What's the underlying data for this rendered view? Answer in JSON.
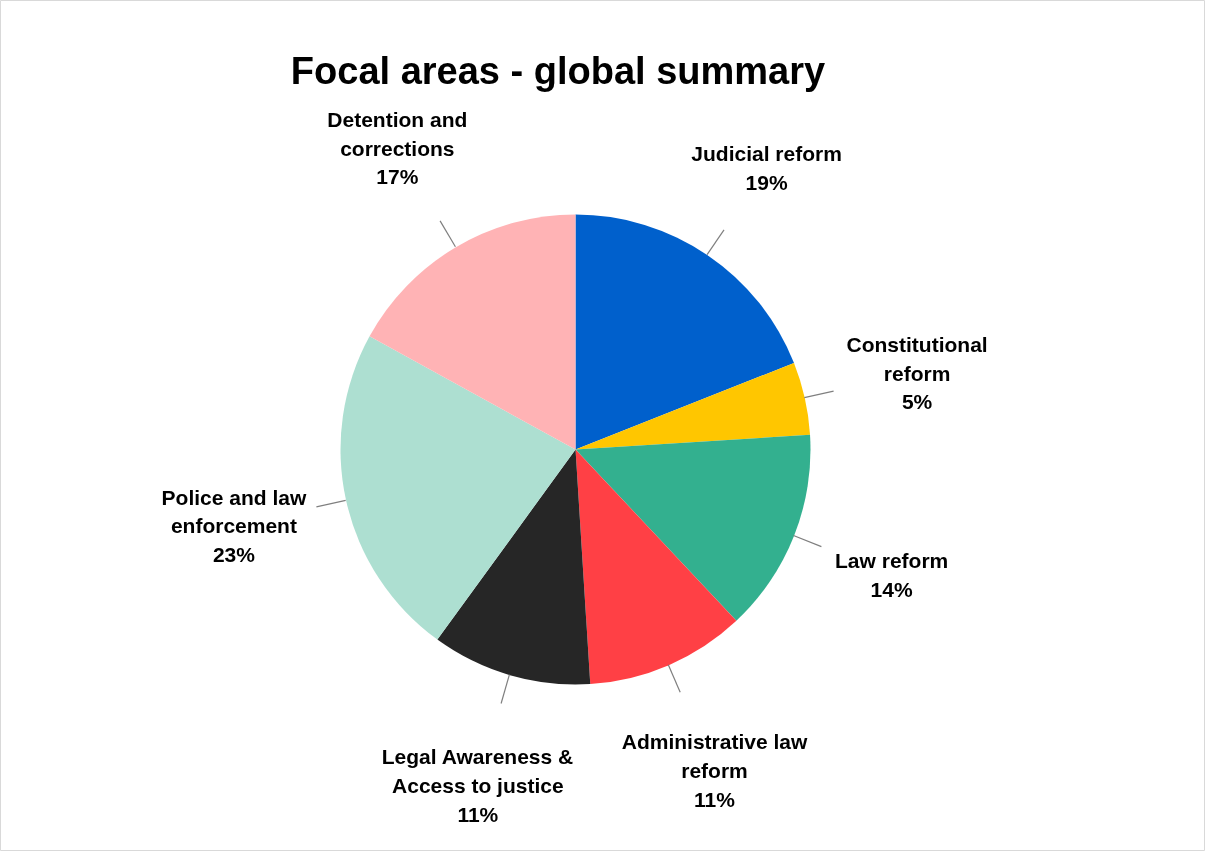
{
  "chart_data": {
    "type": "pie",
    "title": "Focal areas - global summary",
    "categories": [
      "Judicial reform",
      "Constitutional reform",
      "Law reform",
      "Administrative law reform",
      "Legal Awareness & Access to justice",
      "Police and law enforcement",
      "Detention and corrections"
    ],
    "values": [
      19,
      5,
      14,
      11,
      11,
      23,
      17
    ],
    "colors": [
      "#0060cc",
      "#ffc600",
      "#33b08f",
      "#ff4045",
      "#262626",
      "#addfd1",
      "#ffb3b5"
    ],
    "value_labels": [
      "19%",
      "5%",
      "14%",
      "11%",
      "11%",
      "23%",
      "17%"
    ]
  }
}
